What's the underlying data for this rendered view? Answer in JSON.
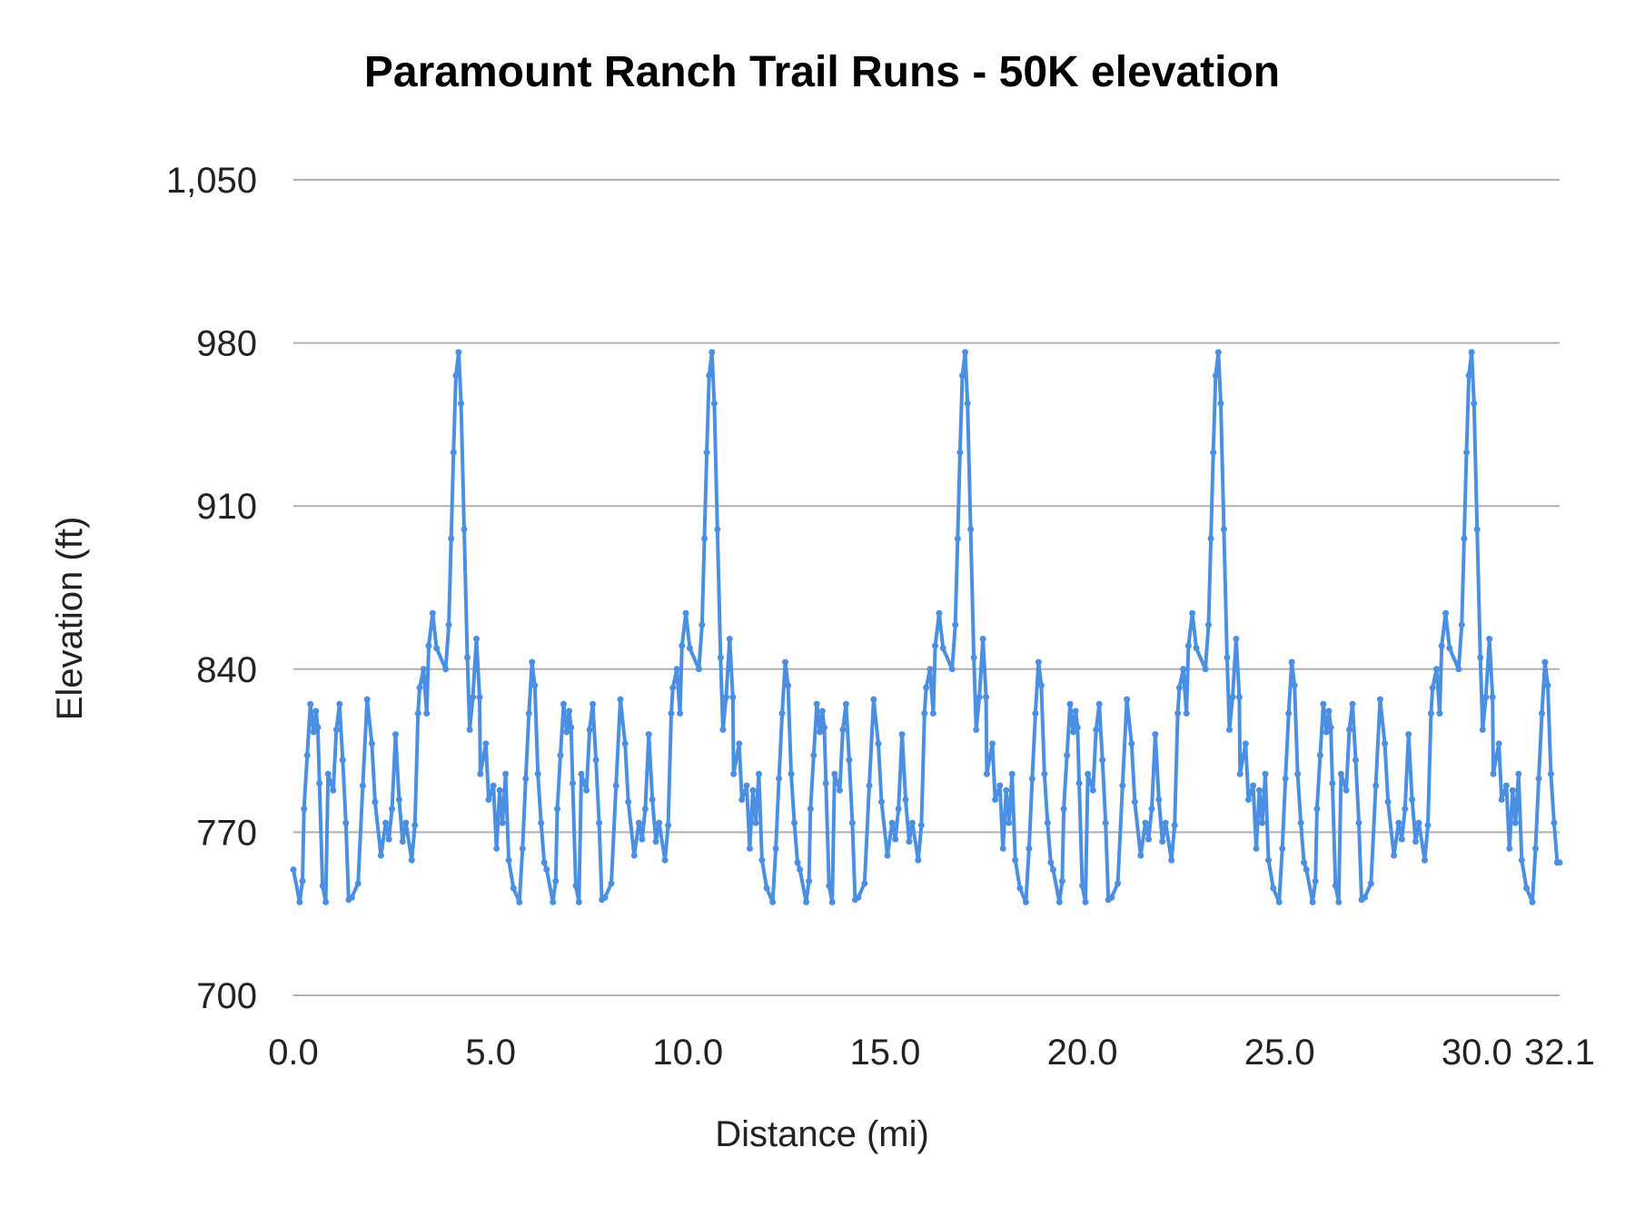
{
  "chart_data": {
    "type": "line",
    "title": "Paramount Ranch Trail Runs - 50K elevation",
    "xlabel": "Distance (mi)",
    "ylabel": "Elevation (ft)",
    "xlim": [
      0,
      32.1
    ],
    "ylim": [
      700,
      1050
    ],
    "x_ticks": [
      "0.0",
      "5.0",
      "10.0",
      "15.0",
      "20.0",
      "25.0",
      "30.0",
      "32.1"
    ],
    "x_tick_values": [
      0,
      5,
      10,
      15,
      20,
      25,
      30,
      32.1
    ],
    "y_ticks": [
      "700",
      "770",
      "840",
      "910",
      "980",
      "1,050"
    ],
    "y_tick_values": [
      700,
      770,
      840,
      910,
      980,
      1050
    ],
    "grid": "horizontal",
    "markers": true,
    "color": "#4a8fe2",
    "gridline_color": "#b0b0b0",
    "series": [
      {
        "x": [
          0.0,
          0.16,
          0.23,
          0.27,
          0.35,
          0.43,
          0.51,
          0.57,
          0.62,
          0.66,
          0.74,
          0.82,
          0.88,
          1.01,
          1.09,
          1.17,
          1.25,
          1.33,
          1.4,
          1.48,
          1.64,
          1.76,
          1.87,
          1.99,
          2.07,
          2.22,
          2.34,
          2.42,
          2.5,
          2.59,
          2.68,
          2.77,
          2.85,
          3.0,
          3.08,
          3.16,
          3.2,
          3.3,
          3.38,
          3.43,
          3.53,
          3.63,
          3.86,
          3.94,
          4.0,
          4.06,
          4.12,
          4.19,
          4.25,
          4.33,
          4.41,
          4.47,
          4.55,
          4.64,
          4.72,
          4.74,
          4.88,
          4.95,
          5.07,
          5.15,
          5.23,
          5.3,
          5.38,
          5.46,
          5.58,
          5.73,
          5.81,
          5.89,
          5.97,
          6.05,
          6.12,
          6.2,
          6.28,
          6.36,
          6.42,
          6.58,
          6.65,
          6.69,
          6.77,
          6.85,
          6.93,
          6.99,
          7.04,
          7.08,
          7.16,
          7.24,
          7.3,
          7.43,
          7.51,
          7.59,
          7.67,
          7.75,
          7.82,
          7.9,
          8.06,
          8.18,
          8.29,
          8.41,
          8.49,
          8.64,
          8.76,
          8.84,
          8.92,
          9.01,
          9.1,
          9.19,
          9.27,
          9.42,
          9.5,
          9.58,
          9.62,
          9.72,
          9.8,
          9.85,
          9.95,
          10.05,
          10.28,
          10.36,
          10.42,
          10.48,
          10.54,
          10.61,
          10.67,
          10.75,
          10.83,
          10.89,
          10.97,
          11.06,
          11.14,
          11.16,
          11.3,
          11.37,
          11.49,
          11.57,
          11.65,
          11.72,
          11.8,
          11.88,
          12.0,
          12.15,
          12.23,
          12.31,
          12.39,
          12.47,
          12.54,
          12.62,
          12.7,
          12.78,
          12.84,
          13.0,
          13.07,
          13.11,
          13.19,
          13.27,
          13.35,
          13.41,
          13.46,
          13.5,
          13.58,
          13.66,
          13.72,
          13.85,
          13.93,
          14.01,
          14.09,
          14.17,
          14.24,
          14.32,
          14.48,
          14.6,
          14.71,
          14.83,
          14.91,
          15.06,
          15.18,
          15.26,
          15.34,
          15.43,
          15.52,
          15.61,
          15.69,
          15.84,
          15.92,
          16.0,
          16.04,
          16.14,
          16.22,
          16.27,
          16.37,
          16.47,
          16.7,
          16.78,
          16.84,
          16.9,
          16.96,
          17.03,
          17.09,
          17.17,
          17.25,
          17.31,
          17.39,
          17.48,
          17.56,
          17.58,
          17.72,
          17.79,
          17.91,
          17.99,
          18.07,
          18.14,
          18.22,
          18.3,
          18.42,
          18.57,
          18.65,
          18.73,
          18.81,
          18.89,
          18.96,
          19.04,
          19.12,
          19.2,
          19.26,
          19.42,
          19.49,
          19.53,
          19.61,
          19.69,
          19.77,
          19.83,
          19.88,
          19.92,
          20.0,
          20.08,
          20.14,
          20.27,
          20.35,
          20.43,
          20.51,
          20.59,
          20.66,
          20.74,
          20.9,
          21.02,
          21.13,
          21.25,
          21.33,
          21.48,
          21.6,
          21.68,
          21.76,
          21.85,
          21.94,
          22.03,
          22.11,
          22.26,
          22.34,
          22.42,
          22.46,
          22.56,
          22.64,
          22.69,
          22.79,
          22.89,
          23.12,
          23.2,
          23.26,
          23.32,
          23.38,
          23.45,
          23.51,
          23.59,
          23.67,
          23.73,
          23.81,
          23.9,
          23.98,
          24.0,
          24.14,
          24.21,
          24.33,
          24.41,
          24.49,
          24.56,
          24.64,
          24.72,
          24.84,
          24.99,
          25.07,
          25.15,
          25.23,
          25.31,
          25.38,
          25.46,
          25.54,
          25.62,
          25.68,
          25.84,
          25.91,
          25.95,
          26.03,
          26.11,
          26.19,
          26.25,
          26.3,
          26.34,
          26.42,
          26.5,
          26.56,
          26.69,
          26.77,
          26.85,
          26.93,
          27.01,
          27.08,
          27.16,
          27.32,
          27.44,
          27.55,
          27.67,
          27.75,
          27.9,
          28.02,
          28.1,
          28.18,
          28.27,
          28.36,
          28.45,
          28.53,
          28.68,
          28.76,
          28.84,
          28.88,
          28.98,
          29.06,
          29.11,
          29.21,
          29.31,
          29.54,
          29.62,
          29.68,
          29.74,
          29.8,
          29.87,
          29.93,
          30.01,
          30.09,
          30.15,
          30.23,
          30.32,
          30.4,
          30.42,
          30.56,
          30.63,
          30.75,
          30.83,
          30.91,
          30.98,
          31.06,
          31.14,
          31.26,
          31.41,
          31.49,
          31.57,
          31.65,
          31.73,
          31.8,
          31.88,
          31.96,
          32.04,
          32.1
        ],
        "y": [
          754,
          740,
          749,
          780,
          803,
          825,
          813,
          822,
          815,
          791,
          747,
          740,
          795,
          788,
          814,
          825,
          801,
          774,
          741,
          742,
          748,
          790,
          827,
          808,
          783,
          760,
          774,
          767,
          780,
          812,
          784,
          766,
          774,
          758,
          773,
          821,
          832,
          840,
          821,
          850,
          864,
          849,
          840,
          859,
          896,
          933,
          966,
          976,
          954,
          900,
          845,
          814,
          828,
          853,
          828,
          795,
          808,
          784,
          790,
          763,
          788,
          774,
          795,
          758,
          746,
          740,
          763,
          793,
          821,
          843,
          833,
          795,
          774,
          757,
          754,
          740,
          749,
          780,
          803,
          825,
          813,
          822,
          815,
          791,
          747,
          740,
          795,
          788,
          814,
          825,
          801,
          774,
          741,
          742,
          748,
          790,
          827,
          808,
          783,
          760,
          774,
          767,
          780,
          812,
          784,
          766,
          774,
          758,
          773,
          821,
          832,
          840,
          821,
          850,
          864,
          849,
          840,
          859,
          896,
          933,
          966,
          976,
          954,
          900,
          845,
          814,
          828,
          853,
          828,
          795,
          808,
          784,
          790,
          763,
          788,
          774,
          795,
          758,
          746,
          740,
          763,
          793,
          821,
          843,
          833,
          795,
          774,
          757,
          754,
          740,
          749,
          780,
          803,
          825,
          813,
          822,
          815,
          791,
          747,
          740,
          795,
          788,
          814,
          825,
          801,
          774,
          741,
          742,
          748,
          790,
          827,
          808,
          783,
          760,
          774,
          767,
          780,
          812,
          784,
          766,
          774,
          758,
          773,
          821,
          832,
          840,
          821,
          850,
          864,
          849,
          840,
          859,
          896,
          933,
          966,
          976,
          954,
          900,
          845,
          814,
          828,
          853,
          828,
          795,
          808,
          784,
          790,
          763,
          788,
          774,
          795,
          758,
          746,
          740,
          763,
          793,
          821,
          843,
          833,
          795,
          774,
          757,
          754,
          740,
          749,
          780,
          803,
          825,
          813,
          822,
          815,
          791,
          747,
          740,
          795,
          788,
          814,
          825,
          801,
          774,
          741,
          742,
          748,
          790,
          827,
          808,
          783,
          760,
          774,
          767,
          780,
          812,
          784,
          766,
          774,
          758,
          773,
          821,
          832,
          840,
          821,
          850,
          864,
          849,
          840,
          859,
          896,
          933,
          966,
          976,
          954,
          900,
          845,
          814,
          828,
          853,
          828,
          795,
          808,
          784,
          790,
          763,
          788,
          774,
          795,
          758,
          746,
          740,
          763,
          793,
          821,
          843,
          833,
          795,
          774,
          757,
          754,
          740,
          749,
          780,
          803,
          825,
          813,
          822,
          815,
          791,
          747,
          740,
          795,
          788,
          814,
          825,
          801,
          774,
          741,
          742,
          748,
          790,
          827,
          808,
          783,
          760,
          774,
          767,
          780,
          812,
          784,
          766,
          774,
          758,
          773,
          821,
          832,
          840,
          821,
          850,
          864,
          849,
          840,
          859,
          896,
          933,
          966,
          976,
          954,
          900,
          845,
          814,
          828,
          853,
          828,
          795,
          808,
          784,
          790,
          763,
          788,
          774,
          795,
          758,
          746,
          740,
          763,
          793,
          821,
          843,
          833,
          795,
          774,
          757,
          757
        ]
      }
    ]
  }
}
